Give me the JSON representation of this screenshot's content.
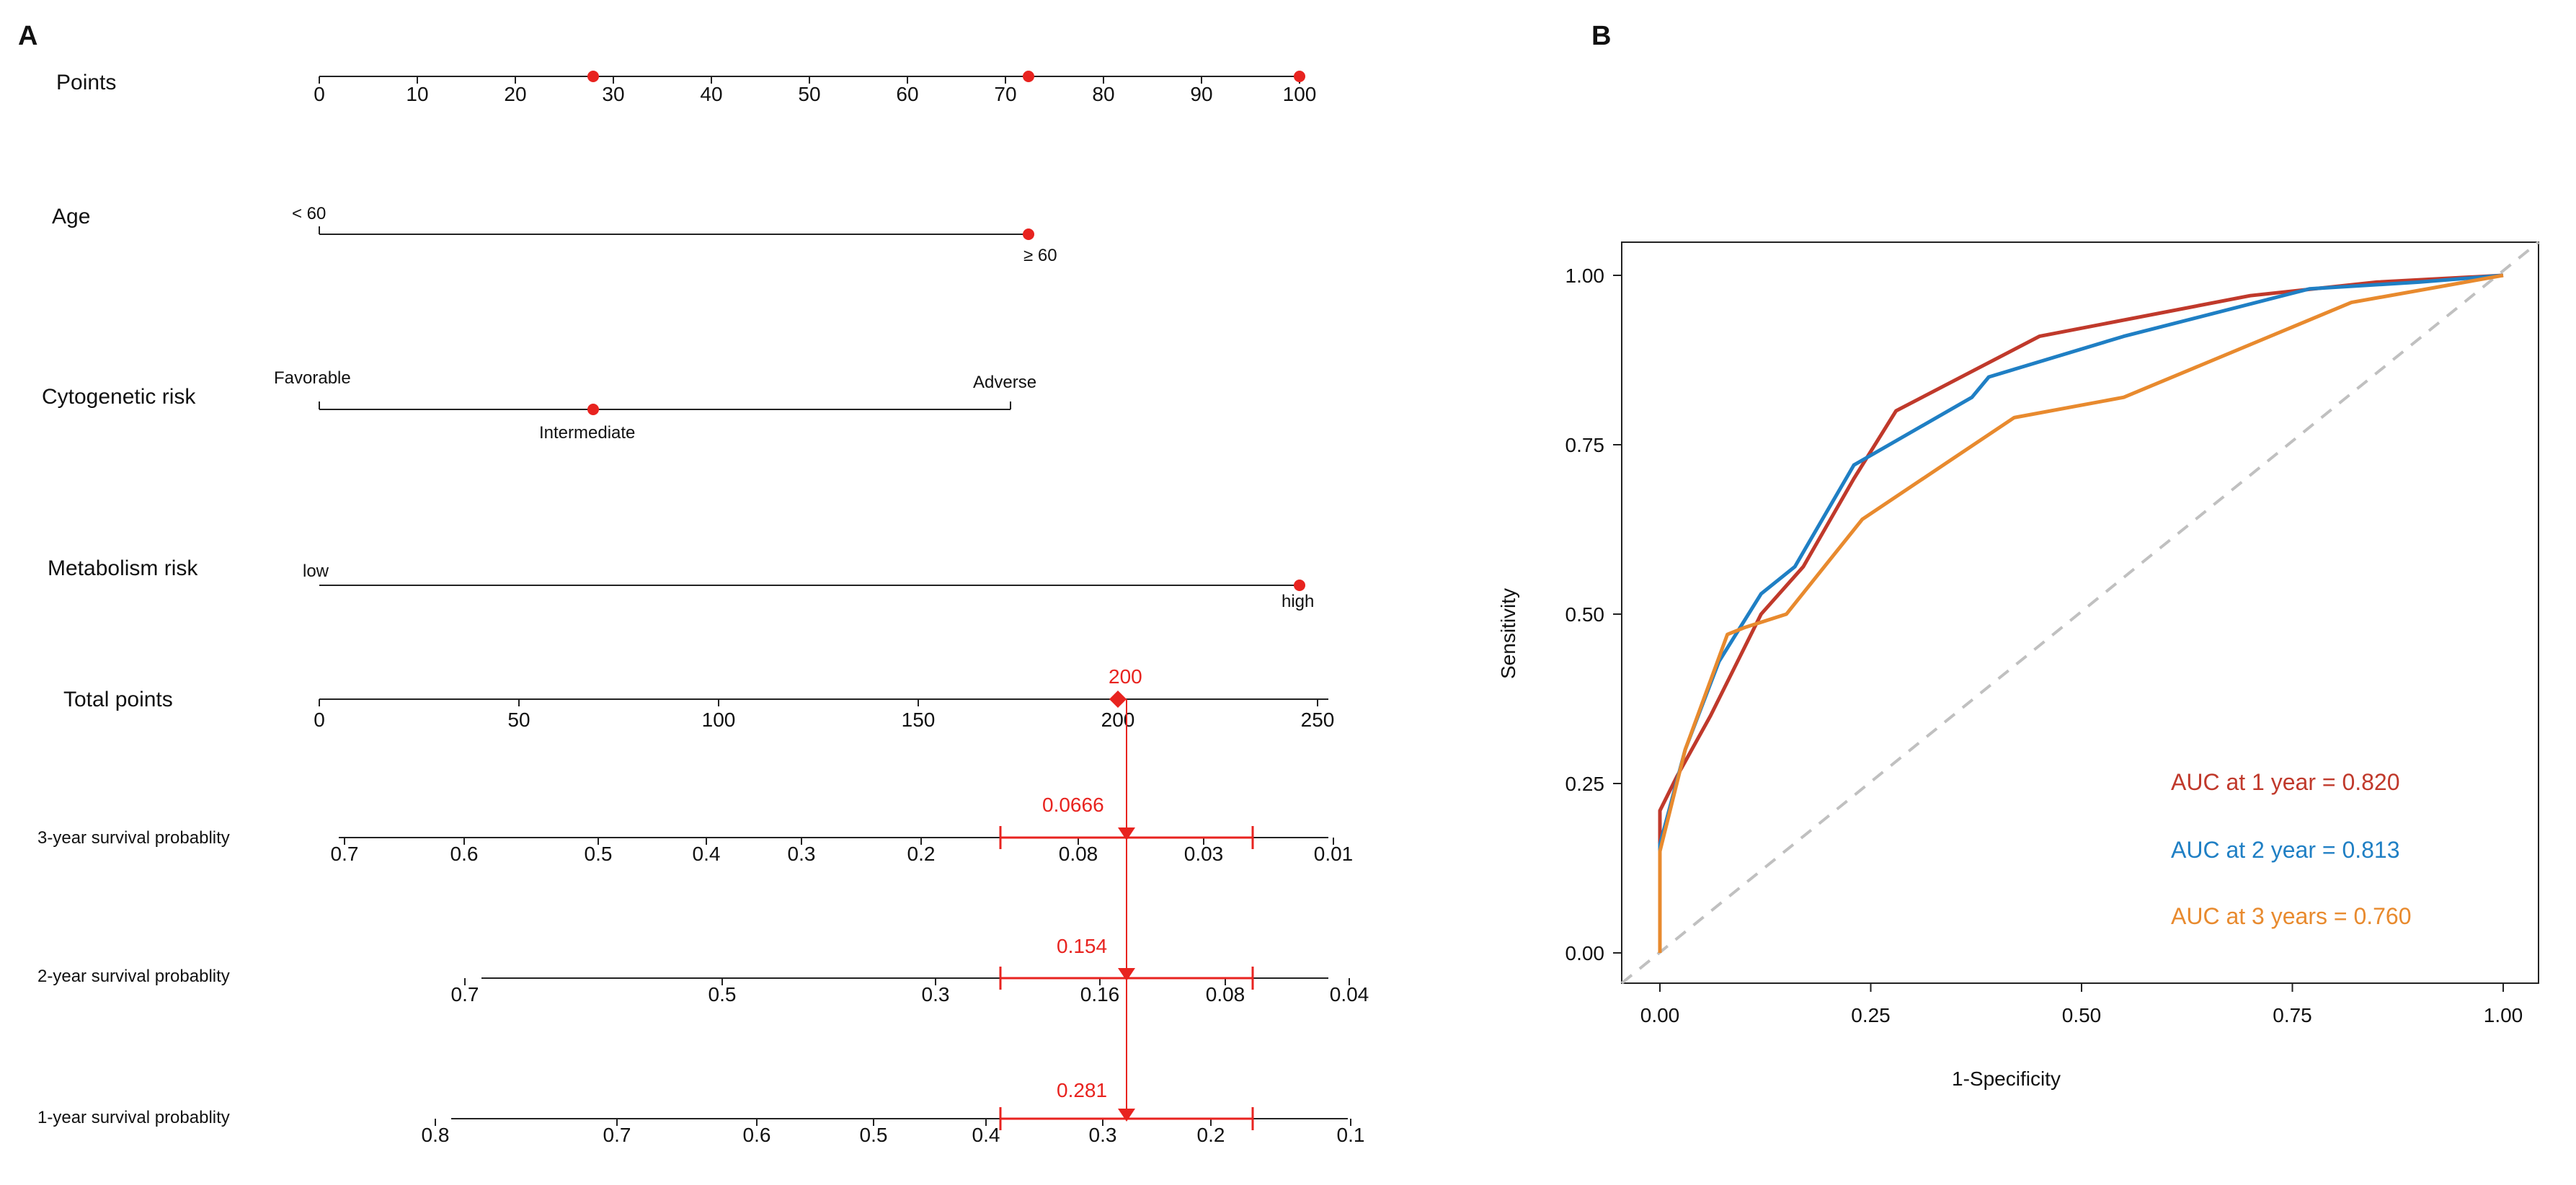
{
  "panel_labels": {
    "left": "A",
    "right": "B"
  },
  "nomogram": {
    "rows": [
      {
        "name": "Points",
        "ticks": [
          "0",
          "10",
          "20",
          "30",
          "40",
          "50",
          "60",
          "70",
          "80",
          "90",
          "100"
        ]
      },
      {
        "name": "Age",
        "levels": [
          "< 60",
          "≥ 60"
        ]
      },
      {
        "name": "Cytogenetic risk",
        "levels": [
          "Favorable",
          "Intermediate",
          "Adverse"
        ]
      },
      {
        "name": "Metabolism risk",
        "levels": [
          "low",
          "high"
        ]
      },
      {
        "name": "Total points",
        "ticks": [
          "0",
          "50",
          "100",
          "150",
          "200",
          "250"
        ]
      },
      {
        "name": "3-year survival probablity",
        "ticks": [
          "0.7",
          "0.6",
          "0.5",
          "0.4",
          "0.3",
          "0.2",
          "0.08",
          "0.03",
          "0.01"
        ]
      },
      {
        "name": "2-year survival probablity",
        "ticks": [
          "0.7",
          "0.5",
          "0.3",
          "0.16",
          "0.08",
          "0.04"
        ]
      },
      {
        "name": "1-year survival probablity",
        "ticks": [
          "0.8",
          "0.7",
          "0.6",
          "0.5",
          "0.4",
          "0.3",
          "0.2",
          "0.1"
        ]
      }
    ],
    "selected_points": {
      "cytogenetic_intermediate": 28,
      "age_60_plus": 72.5,
      "metabolism_high": 100
    },
    "total_points_value": "200",
    "predictions": {
      "three_year": "0.0666",
      "two_year": "0.154",
      "one_year": "0.281"
    }
  },
  "chart_data": {
    "type": "line",
    "title": "",
    "xlabel": "1-Specificity",
    "ylabel": "Sensitivity",
    "xlim": [
      0,
      1
    ],
    "ylim": [
      0,
      1
    ],
    "xticks": [
      "0.00",
      "0.25",
      "0.50",
      "0.75",
      "1.00"
    ],
    "yticks": [
      "0.00",
      "0.25",
      "0.50",
      "0.75",
      "1.00"
    ],
    "series": [
      {
        "name": "AUC at 1 year = 0.820",
        "color": "#c0392b",
        "points": [
          [
            0,
            0
          ],
          [
            0,
            0.21
          ],
          [
            0.02,
            0.26
          ],
          [
            0.06,
            0.35
          ],
          [
            0.12,
            0.5
          ],
          [
            0.17,
            0.57
          ],
          [
            0.23,
            0.7
          ],
          [
            0.28,
            0.8
          ],
          [
            0.45,
            0.91
          ],
          [
            0.7,
            0.97
          ],
          [
            0.85,
            0.99
          ],
          [
            1.0,
            1.0
          ]
        ]
      },
      {
        "name": "AUC at 2 year = 0.813",
        "color": "#1f7fc4",
        "points": [
          [
            0,
            0
          ],
          [
            0,
            0.16
          ],
          [
            0.03,
            0.3
          ],
          [
            0.07,
            0.43
          ],
          [
            0.12,
            0.53
          ],
          [
            0.16,
            0.57
          ],
          [
            0.23,
            0.72
          ],
          [
            0.37,
            0.82
          ],
          [
            0.39,
            0.85
          ],
          [
            0.55,
            0.91
          ],
          [
            0.77,
            0.98
          ],
          [
            0.9,
            0.99
          ],
          [
            1.0,
            1.0
          ]
        ]
      },
      {
        "name": "AUC at 3 years = 0.760",
        "color": "#e88a2e",
        "points": [
          [
            0,
            0
          ],
          [
            0,
            0.15
          ],
          [
            0.03,
            0.3
          ],
          [
            0.08,
            0.47
          ],
          [
            0.1,
            0.48
          ],
          [
            0.15,
            0.5
          ],
          [
            0.24,
            0.64
          ],
          [
            0.42,
            0.79
          ],
          [
            0.55,
            0.82
          ],
          [
            0.82,
            0.96
          ],
          [
            1.0,
            1.0
          ]
        ]
      }
    ],
    "reference_line": "diagonal-dashed",
    "legend_placement": "bottom-right"
  }
}
